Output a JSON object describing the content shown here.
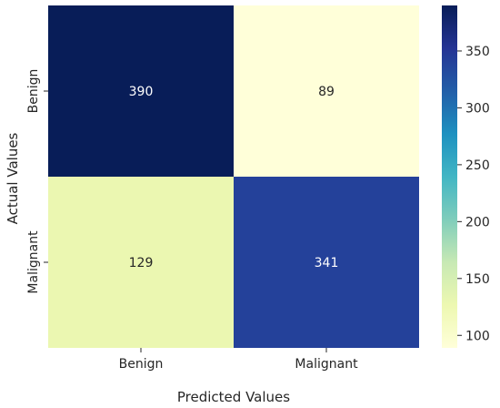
{
  "chart_data": {
    "type": "heatmap",
    "title": "",
    "xlabel": "Predicted Values",
    "ylabel": "Actual Values",
    "x_categories": [
      "Benign",
      "Malignant"
    ],
    "y_categories": [
      "Benign",
      "Malignant"
    ],
    "values": [
      [
        390,
        89
      ],
      [
        129,
        341
      ]
    ],
    "colormap": "YlGnBu",
    "colorbar": {
      "range": [
        89,
        390
      ],
      "ticks": [
        100,
        150,
        200,
        250,
        300,
        350
      ]
    },
    "grid": false,
    "legend": "colorbar-right"
  }
}
